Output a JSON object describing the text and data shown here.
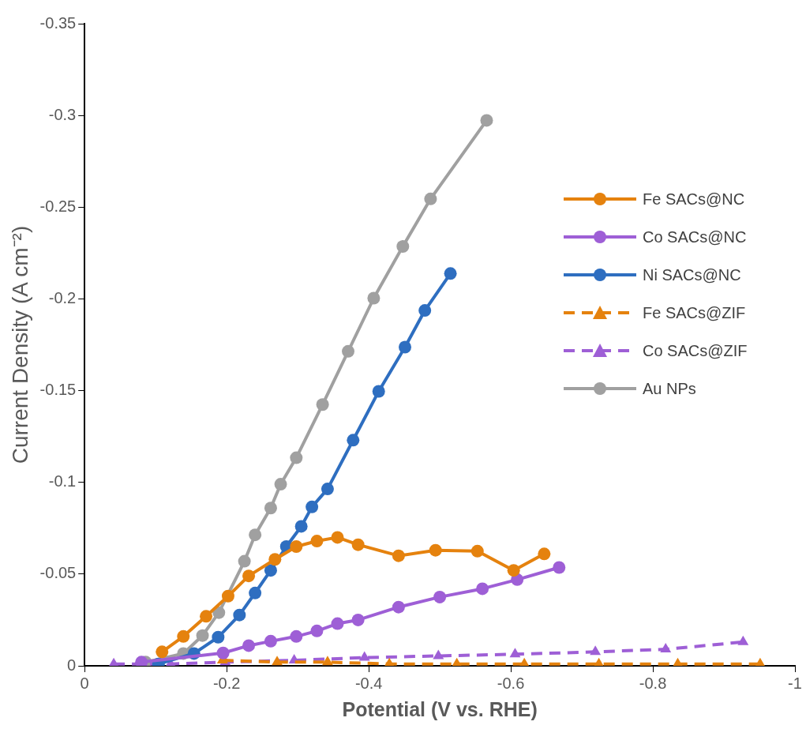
{
  "chart_data": {
    "type": "line",
    "xlabel": "Potential (V vs. RHE)",
    "ylabel": "Current Density (A cm⁻²)",
    "xlim": [
      0,
      -1
    ],
    "xticks": [
      0,
      -0.2,
      -0.4,
      -0.6,
      -0.8,
      -1
    ],
    "ylim": [
      0,
      -0.35
    ],
    "yticks": [
      0,
      -0.05,
      -0.1,
      -0.15,
      -0.2,
      -0.25,
      -0.3,
      -0.35
    ],
    "grid": false,
    "legend": "right",
    "series": [
      {
        "name": "Fe SACs@NC",
        "color": "#e5820e",
        "marker": "circle",
        "line_style": "solid",
        "x": [
          -0.109,
          -0.139,
          -0.171,
          -0.202,
          -0.231,
          -0.268,
          -0.298,
          -0.327,
          -0.356,
          -0.385,
          -0.442,
          -0.494,
          -0.553,
          -0.604,
          -0.647
        ],
        "values": [
          -0.0076,
          -0.016,
          -0.027,
          -0.038,
          -0.049,
          -0.058,
          -0.065,
          -0.068,
          -0.07,
          -0.066,
          -0.06,
          -0.063,
          -0.0625,
          -0.052,
          -0.061
        ]
      },
      {
        "name": "Co SACs@NC",
        "color": "#9e5fd6",
        "marker": "circle",
        "line_style": "solid",
        "x": [
          -0.08,
          -0.195,
          -0.231,
          -0.262,
          -0.298,
          -0.327,
          -0.356,
          -0.385,
          -0.442,
          -0.5,
          -0.56,
          -0.609,
          -0.668
        ],
        "values": [
          -0.002,
          -0.007,
          -0.011,
          -0.0134,
          -0.016,
          -0.019,
          -0.023,
          -0.025,
          -0.032,
          -0.0375,
          -0.042,
          -0.047,
          -0.0536
        ]
      },
      {
        "name": "Ni SACs@NC",
        "color": "#2e6ec0",
        "marker": "circle",
        "line_style": "solid",
        "x": [
          -0.104,
          -0.154,
          -0.188,
          -0.218,
          -0.24,
          -0.262,
          -0.284,
          -0.305,
          -0.32,
          -0.342,
          -0.378,
          -0.414,
          -0.451,
          -0.479,
          -0.515
        ],
        "values": [
          -0.001,
          -0.0067,
          -0.0156,
          -0.0277,
          -0.0397,
          -0.052,
          -0.065,
          -0.076,
          -0.0866,
          -0.0964,
          -0.123,
          -0.1496,
          -0.1737,
          -0.1937,
          -0.2138
        ]
      },
      {
        "name": "Fe SACs@ZIF",
        "color": "#e5820e",
        "marker": "triangle",
        "line_style": "dashed",
        "x": [
          -0.194,
          -0.271,
          -0.342,
          -0.429,
          -0.524,
          -0.619,
          -0.724,
          -0.835,
          -0.951
        ],
        "values": [
          -0.003,
          -0.002,
          -0.002,
          -0.001,
          -0.001,
          -0.001,
          -0.001,
          -0.001,
          -0.001
        ]
      },
      {
        "name": "Co SACs@ZIF",
        "color": "#9e5fd6",
        "marker": "triangle",
        "line_style": "dashed",
        "x": [
          -0.041,
          -0.121,
          -0.198,
          -0.295,
          -0.394,
          -0.498,
          -0.606,
          -0.719,
          -0.818,
          -0.927
        ],
        "values": [
          -0.001,
          -0.001,
          -0.002,
          -0.003,
          -0.0045,
          -0.0054,
          -0.0063,
          -0.0076,
          -0.009,
          -0.013
        ]
      },
      {
        "name": "Au NPs",
        "color": "#a0a0a0",
        "marker": "circle",
        "line_style": "solid",
        "x": [
          -0.086,
          -0.139,
          -0.166,
          -0.189,
          -0.225,
          -0.24,
          -0.262,
          -0.276,
          -0.298,
          -0.335,
          -0.371,
          -0.407,
          -0.448,
          -0.487,
          -0.566
        ],
        "values": [
          -0.002,
          -0.0067,
          -0.0165,
          -0.029,
          -0.057,
          -0.0714,
          -0.086,
          -0.099,
          -0.1134,
          -0.1424,
          -0.1714,
          -0.2004,
          -0.2286,
          -0.2545,
          -0.2973
        ]
      }
    ]
  }
}
